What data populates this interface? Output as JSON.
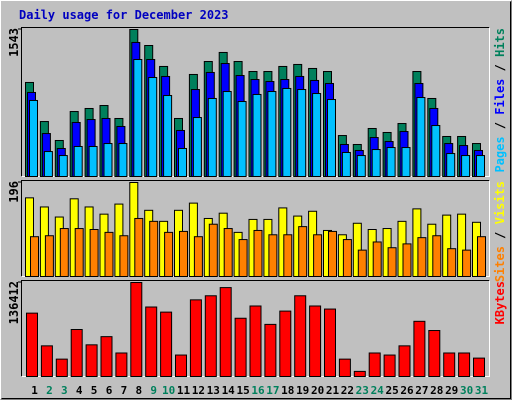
{
  "title": "Daily usage for December 2023",
  "legend_separator": " / ",
  "chart_data": [
    {
      "type": "bar",
      "ylim": [
        0,
        1543
      ],
      "yticks": [
        1543
      ],
      "series": [
        {
          "name": "Pages",
          "color": "#00C0FF",
          "label_color": "#00C0FF",
          "values": [
            798,
            262,
            220,
            315,
            315,
            346,
            346,
            1228,
            1039,
            850,
            294,
            619,
            819,
            892,
            787,
            861,
            892,
            924,
            913,
            871,
            808,
            252,
            220,
            283,
            304,
            304,
            829,
            535,
            241,
            220,
            220
          ]
        },
        {
          "name": "Files",
          "color": "#0000FF",
          "label_color": "#0000FF",
          "values": [
            882,
            451,
            294,
            567,
            598,
            609,
            525,
            1407,
            1228,
            1050,
            483,
            913,
            1092,
            1186,
            1060,
            1018,
            997,
            1018,
            1050,
            1008,
            976,
            336,
            273,
            409,
            367,
            472,
            976,
            714,
            346,
            325,
            273
          ]
        },
        {
          "name": "Hits",
          "color": "#00805C",
          "label_color": "#00805C",
          "values": [
            987,
            577,
            378,
            682,
            714,
            745,
            609,
            1543,
            1375,
            1155,
            609,
            1071,
            1207,
            1302,
            1207,
            1102,
            1102,
            1155,
            1176,
            1134,
            1102,
            430,
            336,
            504,
            462,
            556,
            1102,
            819,
            420,
            420,
            346
          ]
        }
      ]
    },
    {
      "type": "bar",
      "ylim": [
        0,
        196
      ],
      "yticks": [
        196
      ],
      "series": [
        {
          "name": "Sites",
          "color": "#FF8000",
          "label_color": "#FF8000",
          "values": [
            83,
            85,
            100,
            100,
            98,
            92,
            85,
            121,
            115,
            92,
            94,
            83,
            109,
            100,
            77,
            96,
            87,
            87,
            104,
            87,
            94,
            77,
            55,
            72,
            60,
            68,
            81,
            85,
            58,
            55,
            83
          ]
        },
        {
          "name": "Visits",
          "color": "#FFFF00",
          "label_color": "#FFFF00",
          "values": [
            164,
            145,
            124,
            162,
            145,
            130,
            151,
            196,
            138,
            115,
            138,
            153,
            121,
            132,
            92,
            119,
            119,
            143,
            126,
            136,
            96,
            87,
            111,
            98,
            100,
            115,
            141,
            109,
            128,
            130,
            113
          ]
        }
      ]
    },
    {
      "type": "bar",
      "ylim": [
        0,
        136412
      ],
      "yticks": [
        136412
      ],
      "categories": [
        "1",
        "2",
        "3",
        "4",
        "5",
        "6",
        "7",
        "8",
        "9",
        "10",
        "11",
        "12",
        "13",
        "14",
        "15",
        "16",
        "17",
        "18",
        "19",
        "20",
        "21",
        "22",
        "23",
        "24",
        "25",
        "26",
        "27",
        "28",
        "29",
        "30",
        "31"
      ],
      "category_colors": [
        "#000000",
        "#00805C",
        "#00805C",
        "#000000",
        "#000000",
        "#000000",
        "#000000",
        "#000000",
        "#00805C",
        "#00805C",
        "#000000",
        "#000000",
        "#000000",
        "#000000",
        "#000000",
        "#00805C",
        "#00805C",
        "#000000",
        "#000000",
        "#000000",
        "#000000",
        "#000000",
        "#00805C",
        "#00805C",
        "#000000",
        "#000000",
        "#000000",
        "#000000",
        "#000000",
        "#00805C",
        "#00805C"
      ],
      "series": [
        {
          "name": "KBytes",
          "color": "#FF0000",
          "label_color": "#FF0000",
          "values": [
            91946,
            44490,
            25211,
            68206,
            45973,
            57837,
            34109,
            136412,
            100843,
            93428,
            31143,
            111225,
            117157,
            129021,
            84531,
            102326,
            75633,
            94912,
            117157,
            102326,
            97878,
            25211,
            7415,
            34109,
            31143,
            44490,
            80082,
            66735,
            34109,
            34109,
            26694
          ]
        }
      ]
    }
  ]
}
